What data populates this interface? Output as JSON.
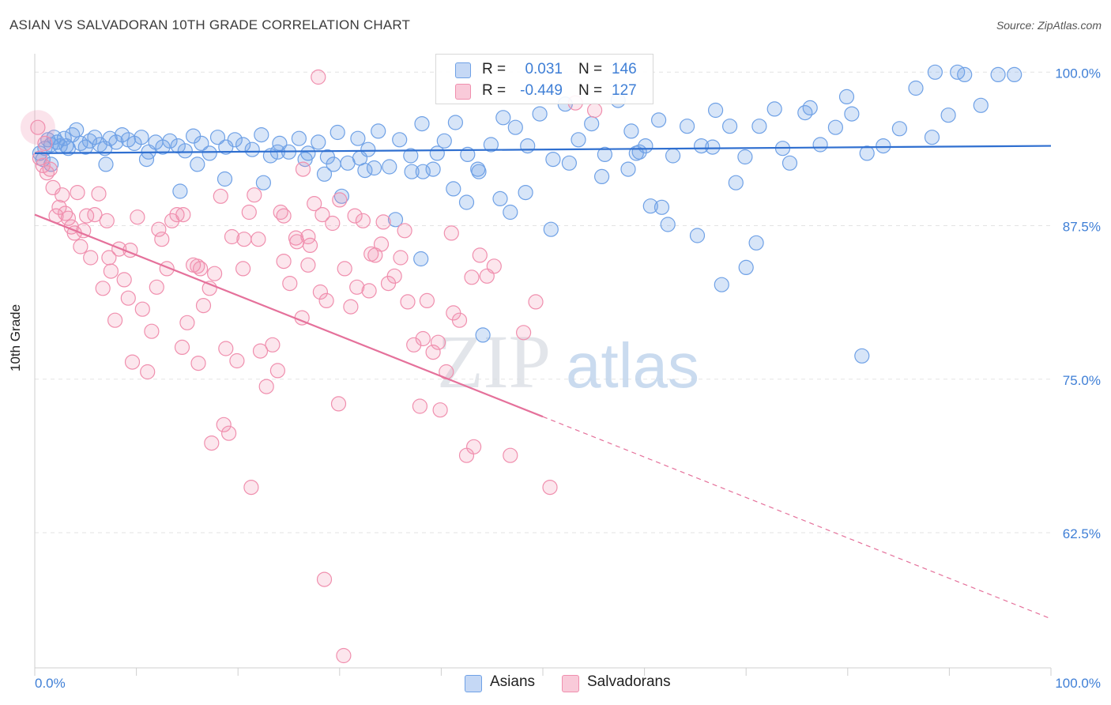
{
  "header": {
    "title": "ASIAN VS SALVADORAN 10TH GRADE CORRELATION CHART",
    "source": "Source: ZipAtlas.com"
  },
  "watermark": {
    "zip": "ZIP",
    "atlas": "atlas"
  },
  "legend": {
    "rows": [
      {
        "r_label": "R =",
        "r_value": "0.031",
        "n_label": "N =",
        "n_value": "146",
        "color": "#6fa1e6"
      },
      {
        "r_label": "R =",
        "r_value": "-0.449",
        "n_label": "N =",
        "n_value": "127",
        "color": "#f08fae"
      }
    ]
  },
  "bottom_legend": [
    {
      "label": "Asians",
      "color": "#6fa1e6"
    },
    {
      "label": "Salvadorans",
      "color": "#f08fae"
    }
  ],
  "chart_data": {
    "type": "scatter",
    "title": "ASIAN VS SALVADORAN 10TH GRADE CORRELATION CHART",
    "xlabel": "",
    "ylabel": "10th Grade",
    "xlim": [
      0,
      100
    ],
    "ylim": [
      51.5,
      101.5
    ],
    "x_tick_labels": [
      "0.0%",
      "100.0%"
    ],
    "y_ticks": [
      62.5,
      75.0,
      87.5,
      100.0
    ],
    "y_tick_labels": [
      "62.5%",
      "75.0%",
      "87.5%",
      "100.0%"
    ],
    "grid": "dashed horizontal",
    "legend_position": "top-center",
    "series": [
      {
        "name": "Asians",
        "color": "#6fa1e6",
        "trend": {
          "x": [
            0,
            100
          ],
          "y": [
            93.4,
            94.0
          ],
          "dashed_from": null
        },
        "points": [
          [
            0.5,
            93.4
          ],
          [
            0.8,
            92.9
          ],
          [
            1.0,
            93.8
          ],
          [
            1.3,
            94.5
          ],
          [
            1.6,
            94.1
          ],
          [
            1.9,
            94.7
          ],
          [
            2.2,
            94.3
          ],
          [
            2.5,
            94.0
          ],
          [
            2.9,
            94.6
          ],
          [
            3.3,
            93.8
          ],
          [
            3.7,
            94.9
          ],
          [
            4.1,
            95.3
          ],
          [
            4.5,
            94.2
          ],
          [
            5.0,
            93.9
          ],
          [
            5.4,
            94.4
          ],
          [
            5.9,
            94.7
          ],
          [
            6.4,
            94.1
          ],
          [
            6.9,
            93.8
          ],
          [
            7.4,
            94.6
          ],
          [
            8.0,
            94.3
          ],
          [
            8.6,
            94.9
          ],
          [
            9.2,
            94.5
          ],
          [
            9.8,
            94.2
          ],
          [
            10.5,
            94.7
          ],
          [
            11.2,
            93.5
          ],
          [
            11.9,
            94.3
          ],
          [
            12.6,
            93.9
          ],
          [
            13.3,
            94.4
          ],
          [
            14.1,
            94.0
          ],
          [
            14.8,
            93.6
          ],
          [
            15.6,
            94.8
          ],
          [
            16.4,
            94.2
          ],
          [
            17.2,
            93.4
          ],
          [
            18.0,
            94.7
          ],
          [
            18.8,
            93.9
          ],
          [
            19.7,
            94.5
          ],
          [
            20.5,
            94.1
          ],
          [
            21.4,
            93.7
          ],
          [
            22.3,
            94.9
          ],
          [
            23.2,
            93.2
          ],
          [
            24.1,
            94.2
          ],
          [
            25.0,
            93.5
          ],
          [
            26.0,
            94.6
          ],
          [
            26.9,
            93.4
          ],
          [
            27.9,
            94.3
          ],
          [
            28.8,
            93.1
          ],
          [
            29.8,
            95.1
          ],
          [
            30.8,
            92.6
          ],
          [
            31.8,
            94.6
          ],
          [
            32.8,
            93.7
          ],
          [
            33.8,
            95.2
          ],
          [
            34.9,
            92.3
          ],
          [
            35.9,
            94.5
          ],
          [
            37.0,
            93.2
          ],
          [
            38.1,
            95.8
          ],
          [
            39.2,
            92.1
          ],
          [
            40.3,
            94.4
          ],
          [
            41.4,
            95.9
          ],
          [
            42.6,
            93.3
          ],
          [
            43.7,
            91.9
          ],
          [
            44.9,
            94.1
          ],
          [
            46.1,
            96.3
          ],
          [
            47.3,
            95.5
          ],
          [
            48.5,
            94.0
          ],
          [
            49.7,
            96.6
          ],
          [
            51.0,
            92.9
          ],
          [
            52.2,
            97.4
          ],
          [
            53.5,
            94.5
          ],
          [
            54.8,
            95.8
          ],
          [
            56.1,
            93.3
          ],
          [
            57.4,
            97.7
          ],
          [
            58.7,
            95.2
          ],
          [
            60.1,
            94.0
          ],
          [
            61.4,
            96.1
          ],
          [
            62.8,
            93.2
          ],
          [
            64.2,
            95.6
          ],
          [
            65.6,
            94.0
          ],
          [
            67.0,
            96.9
          ],
          [
            68.4,
            95.6
          ],
          [
            69.9,
            93.1
          ],
          [
            71.3,
            95.6
          ],
          [
            72.8,
            97.0
          ],
          [
            74.3,
            92.6
          ],
          [
            75.8,
            96.7
          ],
          [
            77.3,
            94.1
          ],
          [
            78.8,
            95.5
          ],
          [
            80.4,
            96.6
          ],
          [
            81.9,
            93.4
          ],
          [
            83.5,
            94.0
          ],
          [
            85.1,
            95.4
          ],
          [
            86.7,
            98.7
          ],
          [
            88.3,
            94.7
          ],
          [
            89.9,
            96.5
          ],
          [
            91.5,
            99.8
          ],
          [
            93.1,
            97.3
          ],
          [
            94.8,
            99.8
          ],
          [
            96.4,
            99.8
          ],
          [
            1.6,
            92.5
          ],
          [
            3.1,
            94.0
          ],
          [
            7.0,
            92.5
          ],
          [
            11.0,
            92.9
          ],
          [
            14.3,
            90.3
          ],
          [
            16.0,
            92.5
          ],
          [
            18.7,
            91.3
          ],
          [
            22.5,
            91.0
          ],
          [
            26.6,
            92.9
          ],
          [
            28.5,
            91.7
          ],
          [
            29.4,
            92.5
          ],
          [
            30.2,
            89.9
          ],
          [
            32.0,
            93.0
          ],
          [
            33.4,
            92.2
          ],
          [
            35.5,
            88.0
          ],
          [
            37.1,
            91.9
          ],
          [
            38.2,
            91.9
          ],
          [
            39.6,
            93.4
          ],
          [
            41.2,
            90.5
          ],
          [
            42.5,
            89.4
          ],
          [
            43.6,
            92.1
          ],
          [
            45.8,
            89.7
          ],
          [
            48.3,
            90.2
          ],
          [
            50.8,
            87.2
          ],
          [
            52.6,
            92.6
          ],
          [
            55.8,
            91.5
          ],
          [
            58.4,
            92.1
          ],
          [
            59.2,
            93.4
          ],
          [
            60.6,
            89.1
          ],
          [
            61.7,
            89.0
          ],
          [
            62.3,
            87.6
          ],
          [
            65.2,
            86.7
          ],
          [
            67.6,
            82.7
          ],
          [
            69.0,
            91.0
          ],
          [
            70.0,
            84.1
          ],
          [
            71.0,
            86.1
          ],
          [
            76.3,
            97.1
          ],
          [
            79.9,
            98.0
          ],
          [
            81.4,
            76.9
          ],
          [
            88.6,
            100.0
          ],
          [
            90.8,
            100.0
          ],
          [
            46.8,
            88.6
          ],
          [
            44.1,
            78.6
          ],
          [
            38.0,
            84.8
          ],
          [
            59.5,
            93.5
          ],
          [
            66.7,
            93.9
          ],
          [
            73.6,
            93.8
          ],
          [
            32.5,
            92.0
          ],
          [
            23.9,
            93.5
          ]
        ]
      },
      {
        "name": "Salvadorans",
        "color": "#f08fae",
        "trend": {
          "x": [
            0,
            100
          ],
          "y": [
            88.4,
            55.5
          ],
          "dashed_from": 50
        },
        "points": [
          [
            0.3,
            95.5
          ],
          [
            0.5,
            93.0
          ],
          [
            0.8,
            92.4
          ],
          [
            1.0,
            94.2
          ],
          [
            1.2,
            91.8
          ],
          [
            1.5,
            92.1
          ],
          [
            1.8,
            90.6
          ],
          [
            2.1,
            88.3
          ],
          [
            2.4,
            89.0
          ],
          [
            2.7,
            90.0
          ],
          [
            3.0,
            88.5
          ],
          [
            3.3,
            88.1
          ],
          [
            3.6,
            87.4
          ],
          [
            3.9,
            86.9
          ],
          [
            4.2,
            90.2
          ],
          [
            4.5,
            85.8
          ],
          [
            4.8,
            87.1
          ],
          [
            5.1,
            88.3
          ],
          [
            5.5,
            84.9
          ],
          [
            5.9,
            88.4
          ],
          [
            6.3,
            90.1
          ],
          [
            6.7,
            82.4
          ],
          [
            7.1,
            87.9
          ],
          [
            7.5,
            83.8
          ],
          [
            7.9,
            79.8
          ],
          [
            8.3,
            85.6
          ],
          [
            8.8,
            83.1
          ],
          [
            9.2,
            81.6
          ],
          [
            9.6,
            76.4
          ],
          [
            10.1,
            88.2
          ],
          [
            10.6,
            80.7
          ],
          [
            11.1,
            75.6
          ],
          [
            11.5,
            78.9
          ],
          [
            12.0,
            82.5
          ],
          [
            12.5,
            86.4
          ],
          [
            13.0,
            84.0
          ],
          [
            13.5,
            87.9
          ],
          [
            14.0,
            88.4
          ],
          [
            14.5,
            77.6
          ],
          [
            15.0,
            79.6
          ],
          [
            15.6,
            84.3
          ],
          [
            16.1,
            76.3
          ],
          [
            16.6,
            81.0
          ],
          [
            17.2,
            82.4
          ],
          [
            17.7,
            83.6
          ],
          [
            18.3,
            89.9
          ],
          [
            18.8,
            77.5
          ],
          [
            19.4,
            86.6
          ],
          [
            19.9,
            76.5
          ],
          [
            20.5,
            84.0
          ],
          [
            21.1,
            88.6
          ],
          [
            21.6,
            90.0
          ],
          [
            22.2,
            77.3
          ],
          [
            22.8,
            74.4
          ],
          [
            23.4,
            77.8
          ],
          [
            23.9,
            75.7
          ],
          [
            24.5,
            84.6
          ],
          [
            25.1,
            82.8
          ],
          [
            25.7,
            86.5
          ],
          [
            26.3,
            80.0
          ],
          [
            26.9,
            84.3
          ],
          [
            27.5,
            89.3
          ],
          [
            28.1,
            82.1
          ],
          [
            28.7,
            81.4
          ],
          [
            29.3,
            87.7
          ],
          [
            29.9,
            73.0
          ],
          [
            30.5,
            84.0
          ],
          [
            31.1,
            80.9
          ],
          [
            31.7,
            82.5
          ],
          [
            32.3,
            87.9
          ],
          [
            32.9,
            82.2
          ],
          [
            33.5,
            85.1
          ],
          [
            34.1,
            86.0
          ],
          [
            34.8,
            82.8
          ],
          [
            35.4,
            83.4
          ],
          [
            36.0,
            84.9
          ],
          [
            36.7,
            81.3
          ],
          [
            37.3,
            77.8
          ],
          [
            37.9,
            72.8
          ],
          [
            38.6,
            81.4
          ],
          [
            39.2,
            77.2
          ],
          [
            39.9,
            72.5
          ],
          [
            40.5,
            75.6
          ],
          [
            41.2,
            80.4
          ],
          [
            41.8,
            79.8
          ],
          [
            42.5,
            68.8
          ],
          [
            43.2,
            69.5
          ],
          [
            43.8,
            85.1
          ],
          [
            44.5,
            83.4
          ],
          [
            45.2,
            84.2
          ],
          [
            46.8,
            68.8
          ],
          [
            48.1,
            78.8
          ],
          [
            49.3,
            81.3
          ],
          [
            50.7,
            66.2
          ],
          [
            53.2,
            97.5
          ],
          [
            55.1,
            96.9
          ],
          [
            7.3,
            84.9
          ],
          [
            9.4,
            85.5
          ],
          [
            12.2,
            87.2
          ],
          [
            16.3,
            84.0
          ],
          [
            18.6,
            71.3
          ],
          [
            20.6,
            86.4
          ],
          [
            22.0,
            86.4
          ],
          [
            24.2,
            88.6
          ],
          [
            25.8,
            86.2
          ],
          [
            27.1,
            85.9
          ],
          [
            28.3,
            88.4
          ],
          [
            30.0,
            89.6
          ],
          [
            31.5,
            88.3
          ],
          [
            33.1,
            85.2
          ],
          [
            34.3,
            87.8
          ],
          [
            36.4,
            87.1
          ],
          [
            38.2,
            78.3
          ],
          [
            39.7,
            78.0
          ],
          [
            41.0,
            86.9
          ],
          [
            43.0,
            83.3
          ],
          [
            14.6,
            88.4
          ],
          [
            16.0,
            84.2
          ],
          [
            17.4,
            69.8
          ],
          [
            19.1,
            70.6
          ],
          [
            21.3,
            66.2
          ],
          [
            24.5,
            88.3
          ],
          [
            26.4,
            92.1
          ],
          [
            27.9,
            99.6
          ],
          [
            28.5,
            58.7
          ],
          [
            30.4,
            52.5
          ],
          [
            26.9,
            86.6
          ]
        ]
      }
    ]
  }
}
